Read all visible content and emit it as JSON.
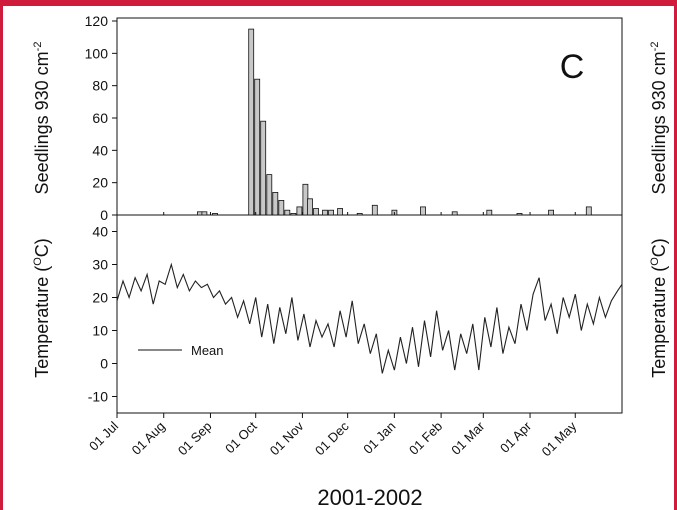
{
  "panel_letter": "C",
  "xlabel": "2001-2002",
  "colors": {
    "frame": "#d01c3c",
    "bar_fill": "#c8c8c8",
    "ink": "#111111"
  },
  "chart_data": [
    {
      "type": "bar",
      "ylabel_left": "Seedlings 930 cm",
      "ylabel_right": "Seedlings 930 cm",
      "ylabel_exponent": "-2",
      "ylim": [
        0,
        120
      ],
      "yticks": [
        0,
        20,
        40,
        60,
        80,
        100,
        120
      ],
      "x": [
        "2001-08-25",
        "2001-08-28",
        "2001-09-04",
        "2001-09-28",
        "2001-10-02",
        "2001-10-06",
        "2001-10-10",
        "2001-10-14",
        "2001-10-18",
        "2001-10-22",
        "2001-10-26",
        "2001-10-30",
        "2001-11-03",
        "2001-11-06",
        "2001-11-10",
        "2001-11-16",
        "2001-11-20",
        "2001-11-26",
        "2001-12-09",
        "2001-12-19",
        "2002-01-01",
        "2002-01-20",
        "2002-02-10",
        "2002-03-05",
        "2002-03-25",
        "2002-04-15",
        "2002-05-10"
      ],
      "values": [
        2,
        2,
        1,
        115,
        84,
        58,
        25,
        14,
        9,
        3,
        1,
        5,
        19,
        10,
        4,
        3,
        3,
        4,
        1,
        6,
        3,
        5,
        2,
        3,
        1,
        3,
        5
      ],
      "grid": false
    },
    {
      "type": "line",
      "ylabel_left": "Temperature (",
      "ylabel_right": "Temperature (",
      "ylabel_sup": "O",
      "ylabel_unit": "C)",
      "ylim": [
        -15,
        45
      ],
      "yticks": [
        -10,
        0,
        10,
        20,
        30,
        40
      ],
      "xticks": [
        "01 Jul",
        "01 Aug",
        "01 Sep",
        "01 Oct",
        "01 Nov",
        "01 Dec",
        "01 Jan",
        "01 Feb",
        "01 Mar",
        "01 Apr",
        "01 May"
      ],
      "xtick_dates": [
        "2001-07-01",
        "2001-08-01",
        "2001-09-01",
        "2001-10-01",
        "2001-11-01",
        "2001-12-01",
        "2002-01-01",
        "2002-02-01",
        "2002-03-01",
        "2002-04-01",
        "2002-05-01"
      ],
      "xlim": [
        "2001-07-01",
        "2002-06-01"
      ],
      "series": [
        {
          "name": "Mean",
          "x": [
            "2001-07-01",
            "2001-07-05",
            "2001-07-09",
            "2001-07-13",
            "2001-07-17",
            "2001-07-21",
            "2001-07-25",
            "2001-07-29",
            "2001-08-02",
            "2001-08-06",
            "2001-08-10",
            "2001-08-14",
            "2001-08-18",
            "2001-08-22",
            "2001-08-26",
            "2001-08-30",
            "2001-09-03",
            "2001-09-07",
            "2001-09-11",
            "2001-09-15",
            "2001-09-19",
            "2001-09-23",
            "2001-09-27",
            "2001-10-01",
            "2001-10-05",
            "2001-10-09",
            "2001-10-13",
            "2001-10-17",
            "2001-10-21",
            "2001-10-25",
            "2001-10-29",
            "2001-11-02",
            "2001-11-06",
            "2001-11-10",
            "2001-11-14",
            "2001-11-18",
            "2001-11-22",
            "2001-11-26",
            "2001-11-30",
            "2001-12-04",
            "2001-12-08",
            "2001-12-12",
            "2001-12-16",
            "2001-12-20",
            "2001-12-24",
            "2001-12-28",
            "2002-01-01",
            "2002-01-05",
            "2002-01-09",
            "2002-01-13",
            "2002-01-17",
            "2002-01-21",
            "2002-01-25",
            "2002-01-29",
            "2002-02-02",
            "2002-02-06",
            "2002-02-10",
            "2002-02-14",
            "2002-02-18",
            "2002-02-22",
            "2002-02-26",
            "2002-03-02",
            "2002-03-06",
            "2002-03-10",
            "2002-03-14",
            "2002-03-18",
            "2002-03-22",
            "2002-03-26",
            "2002-03-30",
            "2002-04-03",
            "2002-04-07",
            "2002-04-11",
            "2002-04-15",
            "2002-04-19",
            "2002-04-23",
            "2002-04-27",
            "2002-05-01",
            "2002-05-05",
            "2002-05-09",
            "2002-05-13",
            "2002-05-17",
            "2002-05-21",
            "2002-05-25",
            "2002-05-29",
            "2002-06-01"
          ],
          "y": [
            19,
            25,
            20,
            26,
            22,
            27,
            18,
            25,
            24,
            30,
            23,
            27,
            22,
            25,
            23,
            24,
            20,
            22,
            18,
            20,
            14,
            19,
            12,
            20,
            8,
            18,
            6,
            17,
            9,
            20,
            7,
            15,
            5,
            13,
            8,
            12,
            5,
            16,
            8,
            19,
            6,
            12,
            3,
            9,
            -3,
            4,
            -2,
            8,
            0,
            11,
            -1,
            13,
            2,
            16,
            4,
            10,
            -2,
            9,
            3,
            12,
            -2,
            14,
            5,
            17,
            3,
            11,
            6,
            18,
            10,
            21,
            26,
            13,
            18,
            9,
            20,
            14,
            21,
            10,
            18,
            12,
            20,
            14,
            19,
            22,
            24
          ]
        }
      ],
      "legend": "center-left",
      "grid": false
    }
  ]
}
